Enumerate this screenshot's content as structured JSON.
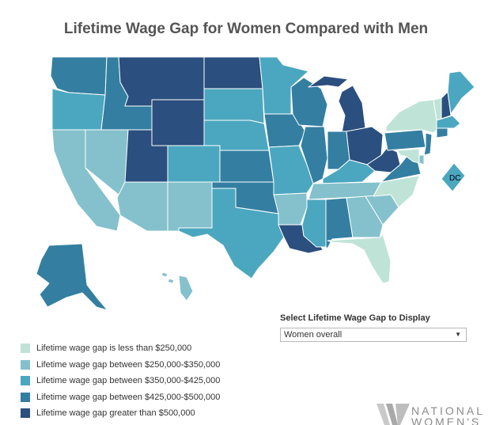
{
  "title": "Lifetime Wage Gap for Women Compared with Men",
  "colors": {
    "c1": "#bfe4d7",
    "c2": "#84c1cc",
    "c3": "#4ba7bf",
    "c4": "#347fa1",
    "c5": "#2b4f7e"
  },
  "legend": [
    {
      "label": "Lifetime wage gap is less than $250,000",
      "color": "#bfe4d7"
    },
    {
      "label": "Lifetime wage gap between $250,000-$350,000",
      "color": "#84c1cc"
    },
    {
      "label": "Lifetime wage gap between $350,000-$425,000",
      "color": "#4ba7bf"
    },
    {
      "label": "Lifetime wage gap between $425,000-$500,000",
      "color": "#347fa1"
    },
    {
      "label": "Lifetime wage gap greater than $500,000",
      "color": "#2b4f7e"
    }
  ],
  "selector": {
    "label": "Select Lifetime Wage Gap to Display",
    "selected": "Women overall"
  },
  "dc_label": "DC",
  "logo": {
    "line1": "NATIONAL",
    "line2": "WOMEN'S"
  },
  "state_classes": {
    "WA": 4,
    "OR": 3,
    "CA": 2,
    "NV": 2,
    "ID": 4,
    "MT": 5,
    "WY": 5,
    "UT": 5,
    "AZ": 2,
    "NM": 2,
    "CO": 3,
    "ND": 5,
    "SD": 3,
    "NE": 3,
    "KS": 4,
    "OK": 4,
    "TX": 3,
    "MN": 3,
    "IA": 4,
    "MO": 3,
    "AR": 2,
    "LA": 5,
    "WI": 4,
    "IL": 4,
    "MS": 3,
    "MI": 5,
    "IN": 4,
    "KY": 3,
    "TN": 2,
    "AL": 4,
    "GA": 2,
    "FL": 1,
    "SC": 2,
    "NC": 1,
    "OH": 5,
    "WV": 5,
    "VA": 4,
    "PA": 4,
    "NY": 1,
    "VT": 1,
    "NH": 5,
    "ME": 3,
    "MA": 3,
    "CT": 4,
    "NJ": 4,
    "DE": 2,
    "MD": 1,
    "AK": 4,
    "HI": 2,
    "DC": 3
  }
}
